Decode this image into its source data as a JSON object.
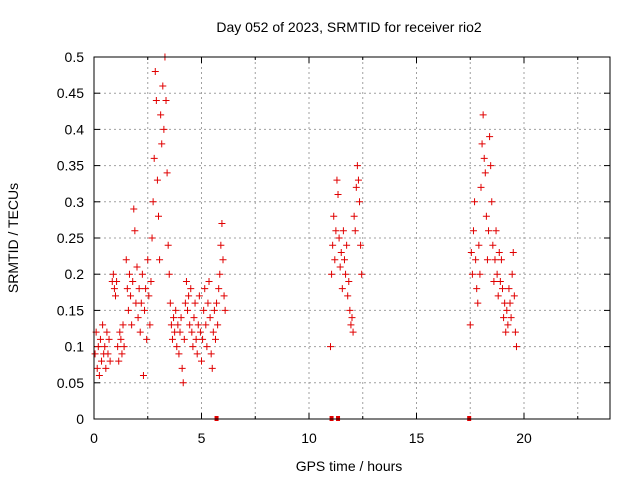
{
  "chart_data": {
    "type": "scatter",
    "title": "Day 052 of 2023, SRMTID for receiver rio2",
    "xlabel": "GPS time / hours",
    "ylabel": "SRMTID / TECUs",
    "xlim": [
      0,
      24
    ],
    "ylim": [
      0,
      0.5
    ],
    "xticks": [
      0,
      5,
      10,
      15,
      20
    ],
    "yticks": [
      0,
      0.05,
      0.1,
      0.15,
      0.2,
      0.25,
      0.3,
      0.35,
      0.4,
      0.45,
      0.5
    ],
    "grid": true,
    "legend": "none",
    "marker": "+",
    "color": "#e00000",
    "series": [
      {
        "points": [
          [
            0.05,
            0.09
          ],
          [
            0.1,
            0.12
          ],
          [
            0.15,
            0.07
          ],
          [
            0.2,
            0.1
          ],
          [
            0.25,
            0.06
          ],
          [
            0.3,
            0.11
          ],
          [
            0.35,
            0.08
          ],
          [
            0.4,
            0.13
          ],
          [
            0.45,
            0.09
          ],
          [
            0.5,
            0.1
          ],
          [
            0.55,
            0.07
          ],
          [
            0.6,
            0.12
          ],
          [
            0.65,
            0.09
          ],
          [
            0.7,
            0.11
          ],
          [
            0.75,
            0.08
          ],
          [
            0.85,
            0.19
          ],
          [
            0.9,
            0.2
          ],
          [
            0.95,
            0.18
          ],
          [
            1.0,
            0.17
          ],
          [
            1.05,
            0.19
          ],
          [
            1.1,
            0.1
          ],
          [
            1.15,
            0.08
          ],
          [
            1.2,
            0.12
          ],
          [
            1.25,
            0.11
          ],
          [
            1.3,
            0.09
          ],
          [
            1.35,
            0.13
          ],
          [
            1.4,
            0.1
          ],
          [
            1.5,
            0.22
          ],
          [
            1.55,
            0.18
          ],
          [
            1.6,
            0.15
          ],
          [
            1.65,
            0.2
          ],
          [
            1.7,
            0.17
          ],
          [
            1.75,
            0.13
          ],
          [
            1.8,
            0.19
          ],
          [
            1.85,
            0.29
          ],
          [
            1.9,
            0.26
          ],
          [
            1.95,
            0.16
          ],
          [
            2.0,
            0.21
          ],
          [
            2.05,
            0.14
          ],
          [
            2.1,
            0.18
          ],
          [
            2.15,
            0.12
          ],
          [
            2.2,
            0.16
          ],
          [
            2.25,
            0.2
          ],
          [
            2.3,
            0.06
          ],
          [
            2.35,
            0.15
          ],
          [
            2.4,
            0.18
          ],
          [
            2.45,
            0.11
          ],
          [
            2.5,
            0.22
          ],
          [
            2.55,
            0.17
          ],
          [
            2.6,
            0.13
          ],
          [
            2.65,
            0.19
          ],
          [
            2.7,
            0.25
          ],
          [
            2.75,
            0.3
          ],
          [
            2.8,
            0.36
          ],
          [
            2.85,
            0.48
          ],
          [
            2.9,
            0.44
          ],
          [
            2.95,
            0.33
          ],
          [
            3.0,
            0.28
          ],
          [
            3.05,
            0.22
          ],
          [
            3.1,
            0.42
          ],
          [
            3.15,
            0.38
          ],
          [
            3.2,
            0.46
          ],
          [
            3.25,
            0.4
          ],
          [
            3.3,
            0.5
          ],
          [
            3.35,
            0.44
          ],
          [
            3.4,
            0.34
          ],
          [
            3.45,
            0.24
          ],
          [
            3.5,
            0.2
          ],
          [
            3.55,
            0.16
          ],
          [
            3.6,
            0.13
          ],
          [
            3.65,
            0.11
          ],
          [
            3.7,
            0.14
          ],
          [
            3.75,
            0.12
          ],
          [
            3.8,
            0.15
          ],
          [
            3.85,
            0.1
          ],
          [
            3.9,
            0.13
          ],
          [
            3.95,
            0.09
          ],
          [
            4.0,
            0.12
          ],
          [
            4.05,
            0.14
          ],
          [
            4.1,
            0.07
          ],
          [
            4.15,
            0.05
          ],
          [
            4.2,
            0.11
          ],
          [
            4.25,
            0.16
          ],
          [
            4.3,
            0.19
          ],
          [
            4.35,
            0.15
          ],
          [
            4.4,
            0.17
          ],
          [
            4.45,
            0.13
          ],
          [
            4.5,
            0.18
          ],
          [
            4.55,
            0.12
          ],
          [
            4.6,
            0.1
          ],
          [
            4.65,
            0.14
          ],
          [
            4.7,
            0.16
          ],
          [
            4.75,
            0.11
          ],
          [
            4.8,
            0.09
          ],
          [
            4.85,
            0.13
          ],
          [
            4.9,
            0.17
          ],
          [
            4.95,
            0.12
          ],
          [
            5.0,
            0.08
          ],
          [
            5.05,
            0.11
          ],
          [
            5.1,
            0.15
          ],
          [
            5.15,
            0.18
          ],
          [
            5.2,
            0.13
          ],
          [
            5.25,
            0.1
          ],
          [
            5.3,
            0.16
          ],
          [
            5.35,
            0.19
          ],
          [
            5.4,
            0.14
          ],
          [
            5.45,
            0.09
          ],
          [
            5.5,
            0.07
          ],
          [
            5.55,
            0.12
          ],
          [
            5.6,
            0.15
          ],
          [
            5.65,
            0.11
          ],
          [
            5.7,
            0.16
          ],
          [
            5.75,
            0.13
          ],
          [
            5.8,
            0.18
          ],
          [
            5.85,
            0.2
          ],
          [
            5.9,
            0.24
          ],
          [
            5.95,
            0.27
          ],
          [
            6.0,
            0.22
          ],
          [
            6.05,
            0.17
          ],
          [
            6.1,
            0.15
          ],
          [
            11.0,
            0.1
          ],
          [
            11.05,
            0.2
          ],
          [
            11.1,
            0.24
          ],
          [
            11.15,
            0.28
          ],
          [
            11.2,
            0.22
          ],
          [
            11.25,
            0.26
          ],
          [
            11.3,
            0.33
          ],
          [
            11.35,
            0.31
          ],
          [
            11.4,
            0.25
          ],
          [
            11.45,
            0.21
          ],
          [
            11.5,
            0.23
          ],
          [
            11.55,
            0.18
          ],
          [
            11.6,
            0.26
          ],
          [
            11.65,
            0.22
          ],
          [
            11.7,
            0.2
          ],
          [
            11.75,
            0.24
          ],
          [
            11.8,
            0.17
          ],
          [
            11.85,
            0.19
          ],
          [
            11.9,
            0.15
          ],
          [
            11.95,
            0.13
          ],
          [
            12.0,
            0.14
          ],
          [
            12.05,
            0.12
          ],
          [
            12.1,
            0.28
          ],
          [
            12.15,
            0.26
          ],
          [
            12.2,
            0.32
          ],
          [
            12.25,
            0.35
          ],
          [
            12.3,
            0.33
          ],
          [
            12.35,
            0.3
          ],
          [
            12.4,
            0.24
          ],
          [
            12.45,
            0.2
          ],
          [
            17.5,
            0.13
          ],
          [
            17.55,
            0.23
          ],
          [
            17.6,
            0.2
          ],
          [
            17.65,
            0.26
          ],
          [
            17.7,
            0.3
          ],
          [
            17.75,
            0.22
          ],
          [
            17.8,
            0.18
          ],
          [
            17.85,
            0.16
          ],
          [
            17.9,
            0.24
          ],
          [
            17.95,
            0.2
          ],
          [
            18.0,
            0.32
          ],
          [
            18.05,
            0.38
          ],
          [
            18.1,
            0.42
          ],
          [
            18.15,
            0.36
          ],
          [
            18.2,
            0.34
          ],
          [
            18.25,
            0.28
          ],
          [
            18.3,
            0.22
          ],
          [
            18.35,
            0.26
          ],
          [
            18.4,
            0.39
          ],
          [
            18.45,
            0.35
          ],
          [
            18.5,
            0.3
          ],
          [
            18.55,
            0.24
          ],
          [
            18.6,
            0.19
          ],
          [
            18.65,
            0.22
          ],
          [
            18.7,
            0.26
          ],
          [
            18.75,
            0.2
          ],
          [
            18.8,
            0.17
          ],
          [
            18.85,
            0.23
          ],
          [
            18.9,
            0.19
          ],
          [
            18.95,
            0.22
          ],
          [
            19.0,
            0.18
          ],
          [
            19.05,
            0.14
          ],
          [
            19.1,
            0.16
          ],
          [
            19.15,
            0.12
          ],
          [
            19.2,
            0.15
          ],
          [
            19.25,
            0.13
          ],
          [
            19.3,
            0.18
          ],
          [
            19.35,
            0.16
          ],
          [
            19.4,
            0.14
          ],
          [
            19.45,
            0.2
          ],
          [
            19.5,
            0.23
          ],
          [
            19.55,
            0.17
          ],
          [
            19.6,
            0.12
          ],
          [
            19.65,
            0.1
          ]
        ],
        "zero_marks": [
          5.7,
          11.05,
          11.35,
          17.45
        ]
      }
    ]
  }
}
